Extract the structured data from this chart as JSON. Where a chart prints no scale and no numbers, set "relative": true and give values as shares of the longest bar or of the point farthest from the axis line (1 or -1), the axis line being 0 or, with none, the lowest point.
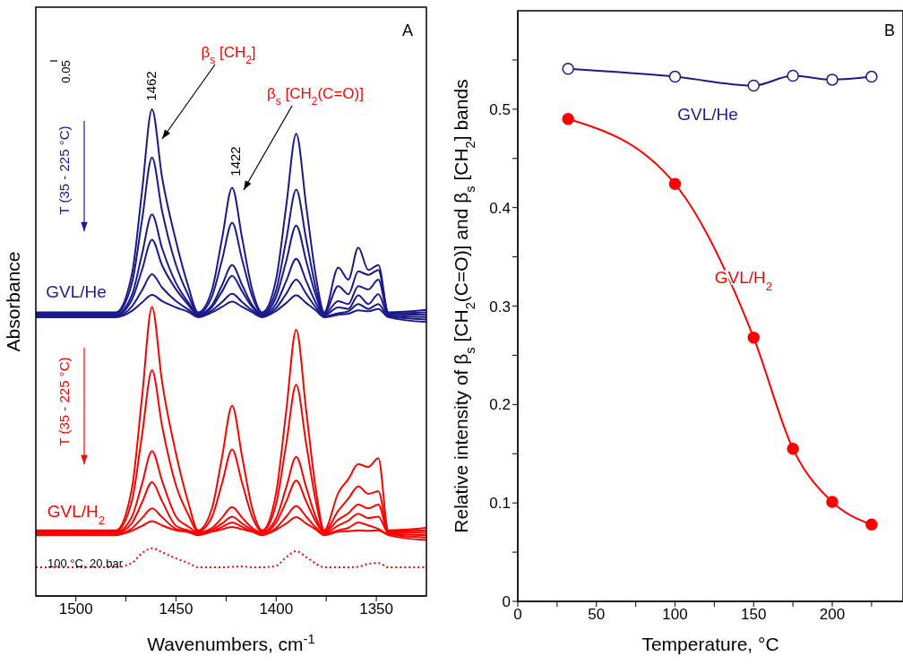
{
  "chart_data": [
    {
      "type": "line",
      "relative": true,
      "xlabel": "Wavenumbers, cm$^{-1}$",
      "ylabel": "Absorbance",
      "tick_labels": "x",
      "line_style": "solid",
      "marker": "none",
      "xlim": [
        1520,
        1325
      ],
      "xticks": [
        1500,
        {
          "value": 1475,
          "label": null
        },
        1450,
        {
          "value": 1425,
          "label": null
        },
        1400,
        {
          "value": 1375,
          "label": null
        },
        1350
      ],
      "x": [
        1520,
        1480,
        1472,
        1467,
        1462,
        1457,
        1450,
        1444,
        1439,
        1432,
        1427,
        1422,
        1417,
        1412,
        1407,
        1400,
        1395,
        1390,
        1385,
        1380,
        1376,
        1369,
        1364,
        1359,
        1354,
        1349,
        1344,
        1325
      ],
      "series": [
        {
          "color": "#1a1a8c",
          "values": [
            0.583,
            0.583,
            0.662,
            0.831,
            1.0,
            0.861,
            0.729,
            0.638,
            0.583,
            0.63,
            0.735,
            0.839,
            0.735,
            0.63,
            0.583,
            0.652,
            0.801,
            0.95,
            0.801,
            0.652,
            0.583,
            0.675,
            0.65,
            0.716,
            0.67,
            0.68,
            0.583,
            0.588
          ]
        },
        {
          "color": "#1a1a8c",
          "values": [
            0.581,
            0.581,
            0.643,
            0.772,
            0.901,
            0.792,
            0.68,
            0.619,
            0.581,
            0.616,
            0.691,
            0.767,
            0.691,
            0.616,
            0.581,
            0.629,
            0.732,
            0.835,
            0.732,
            0.629,
            0.581,
            0.637,
            0.62,
            0.667,
            0.66,
            0.67,
            0.581,
            0.583
          ]
        },
        {
          "color": "#1a1a8c",
          "values": [
            0.579,
            0.579,
            0.619,
            0.702,
            0.784,
            0.715,
            0.643,
            0.604,
            0.579,
            0.598,
            0.639,
            0.68,
            0.639,
            0.598,
            0.579,
            0.615,
            0.688,
            0.761,
            0.688,
            0.615,
            0.579,
            0.606,
            0.6,
            0.637,
            0.63,
            0.65,
            0.579,
            0.578
          ]
        },
        {
          "color": "#1a1a8c",
          "values": [
            0.577,
            0.577,
            0.609,
            0.67,
            0.732,
            0.68,
            0.63,
            0.599,
            0.577,
            0.594,
            0.626,
            0.658,
            0.626,
            0.594,
            0.577,
            0.601,
            0.647,
            0.693,
            0.647,
            0.601,
            0.577,
            0.593,
            0.59,
            0.618,
            0.6,
            0.62,
            0.577,
            0.573
          ]
        },
        {
          "color": "#1a1a8c",
          "values": [
            0.575,
            0.575,
            0.595,
            0.628,
            0.661,
            0.634,
            0.606,
            0.589,
            0.575,
            0.587,
            0.604,
            0.621,
            0.604,
            0.587,
            0.575,
            0.592,
            0.621,
            0.65,
            0.621,
            0.592,
            0.575,
            0.581,
            0.585,
            0.6,
            0.59,
            0.6,
            0.575,
            0.568
          ]
        },
        {
          "color": "#1a1a8c",
          "values": [
            0.573,
            0.573,
            0.586,
            0.603,
            0.619,
            0.606,
            0.593,
            0.584,
            0.573,
            0.583,
            0.594,
            0.605,
            0.594,
            0.583,
            0.573,
            0.586,
            0.602,
            0.618,
            0.602,
            0.586,
            0.573,
            0.578,
            0.58,
            0.587,
            0.585,
            0.59,
            0.573,
            0.563
          ]
        },
        {
          "color": "#ff0000",
          "values": [
            0.135,
            0.135,
            0.222,
            0.408,
            0.594,
            0.441,
            0.292,
            0.194,
            0.135,
            0.181,
            0.286,
            0.391,
            0.286,
            0.181,
            0.135,
            0.213,
            0.38,
            0.547,
            0.38,
            0.213,
            0.135,
            0.212,
            0.24,
            0.271,
            0.265,
            0.283,
            0.135,
            0.14
          ]
        },
        {
          "color": "#ff0000",
          "values": [
            0.133,
            0.133,
            0.196,
            0.33,
            0.464,
            0.35,
            0.227,
            0.168,
            0.133,
            0.163,
            0.232,
            0.301,
            0.232,
            0.163,
            0.133,
            0.19,
            0.312,
            0.434,
            0.312,
            0.19,
            0.133,
            0.175,
            0.2,
            0.225,
            0.21,
            0.215,
            0.133,
            0.135
          ]
        },
        {
          "color": "#ff0000",
          "values": [
            0.131,
            0.131,
            0.163,
            0.23,
            0.298,
            0.237,
            0.163,
            0.143,
            0.131,
            0.14,
            0.161,
            0.183,
            0.161,
            0.14,
            0.131,
            0.16,
            0.223,
            0.286,
            0.223,
            0.16,
            0.131,
            0.157,
            0.17,
            0.188,
            0.18,
            0.188,
            0.131,
            0.13
          ]
        },
        {
          "color": "#ff0000",
          "values": [
            0.129,
            0.129,
            0.15,
            0.192,
            0.234,
            0.195,
            0.144,
            0.135,
            0.129,
            0.136,
            0.149,
            0.163,
            0.149,
            0.136,
            0.129,
            0.151,
            0.194,
            0.237,
            0.194,
            0.151,
            0.129,
            0.145,
            0.155,
            0.169,
            0.16,
            0.163,
            0.129,
            0.125
          ]
        },
        {
          "color": "#ff0000",
          "values": [
            0.127,
            0.127,
            0.139,
            0.16,
            0.18,
            0.162,
            0.138,
            0.133,
            0.127,
            0.133,
            0.142,
            0.151,
            0.142,
            0.133,
            0.127,
            0.14,
            0.163,
            0.185,
            0.163,
            0.14,
            0.127,
            0.135,
            0.14,
            0.151,
            0.145,
            0.138,
            0.127,
            0.12
          ]
        },
        {
          "color": "#ff0000",
          "values": [
            0.125,
            0.125,
            0.134,
            0.144,
            0.154,
            0.145,
            0.135,
            0.131,
            0.125,
            0.132,
            0.137,
            0.142,
            0.137,
            0.132,
            0.125,
            0.136,
            0.149,
            0.162,
            0.149,
            0.136,
            0.125,
            0.132,
            0.133,
            0.135,
            0.134,
            0.135,
            0.125,
            0.115
          ]
        },
        {
          "color": "#ff0000",
          "line_style": "dotted",
          "values": [
            0.059,
            0.059,
            0.068,
            0.088,
            0.098,
            0.09,
            0.077,
            0.068,
            0.059,
            0.059,
            0.059,
            0.06,
            0.061,
            0.059,
            0.059,
            0.062,
            0.08,
            0.092,
            0.08,
            0.066,
            0.059,
            0.059,
            0.059,
            0.06,
            0.066,
            0.068,
            0.059,
            0.059
          ]
        }
      ],
      "annotations": [
        "A",
        "1462",
        "1422",
        "β$_{s}$ [CH$_{2}$]",
        "β$_{s}$ [CH$_{2}$(C=O)]",
        "0.05",
        "T (35 - 225 °C)",
        "T (35 - 225 °C)",
        "GVL/He",
        "GVL/H$_{2}$",
        "100 °C, 20 bar"
      ]
    },
    {
      "type": "line",
      "xlabel": "Temperature, °C",
      "ylabel": "Relative intensity of β$_{s}$ [CH$_{2}$(C=O)] and β$_{s}$ [CH$_{2}$] bands",
      "marker": "circle",
      "line_style": "solid",
      "xlim": [
        0,
        245
      ],
      "xticks": [
        0,
        {
          "value": 25,
          "label": null
        },
        50,
        {
          "value": 75,
          "label": null
        },
        100,
        {
          "value": 125,
          "label": null
        },
        150,
        {
          "value": 175,
          "label": null
        },
        200,
        {
          "value": 225,
          "label": null
        }
      ],
      "ylim": [
        0,
        0.6
      ],
      "yticks": [
        0,
        {
          "value": 0.05,
          "label": null
        },
        0.1,
        {
          "value": 0.15,
          "label": null
        },
        0.2,
        {
          "value": 0.25,
          "label": null
        },
        0.3,
        {
          "value": 0.35,
          "label": null
        },
        0.4,
        {
          "value": 0.45,
          "label": null
        },
        0.5,
        {
          "value": 0.55,
          "label": null
        }
      ],
      "x": [
        32,
        100,
        150,
        175,
        200,
        225
      ],
      "series": [
        {
          "color": "#1a1a8c",
          "values": [
            0.541,
            0.533,
            0.524,
            0.534,
            0.53,
            0.533
          ]
        },
        {
          "color": "#ff0000",
          "values": [
            0.49,
            0.424,
            0.268,
            0.155,
            0.101,
            0.078
          ]
        }
      ],
      "annotations": [
        "B",
        "GVL/He",
        "GVL/H$_{2}$"
      ]
    }
  ]
}
